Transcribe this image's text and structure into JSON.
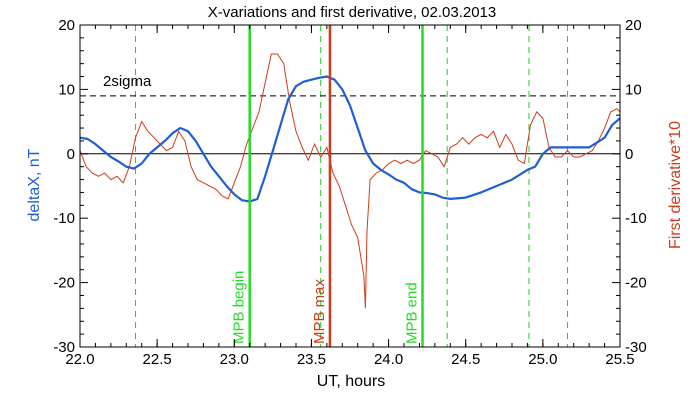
{
  "chart_data": {
    "type": "line",
    "title": "X-variations and first derivative, 02.03.2013",
    "xlabel": "UT, hours",
    "ylabel_left": "deltaX, nT",
    "ylabel_right": "First derivative*10",
    "xlim": [
      22.0,
      25.5
    ],
    "ylim": [
      -30,
      20
    ],
    "x_ticks": [
      "22.0",
      "22.5",
      "23.0",
      "23.5",
      "24.0",
      "24.5",
      "25.0",
      "25.5"
    ],
    "y_ticks_left": [
      "-30",
      "-20",
      "-10",
      "0",
      "10",
      "20"
    ],
    "y_ticks_right": [
      "-30",
      "-20",
      "-10",
      "0",
      "10",
      "20"
    ],
    "colors": {
      "deltaX": "#1f5fd6",
      "derivative": "#d23a1c",
      "marker_green": "#22dd22",
      "marker_red": "#d23a1c",
      "dashed_green": "#22cc22",
      "threshold": "#000000"
    },
    "threshold": {
      "label": "2sigma",
      "value": 9
    },
    "vertical_markers": [
      {
        "label": "MPB begin",
        "x": 23.1,
        "color": "#22dd22"
      },
      {
        "label": "MPB max",
        "x": 23.62,
        "color": "#d23a1c"
      },
      {
        "label": "MPB end",
        "x": 24.22,
        "color": "#22dd22"
      }
    ],
    "dashed_lines_x": [
      22.36,
      23.56,
      24.38,
      24.91,
      25.16
    ],
    "series": [
      {
        "name": "deltaX",
        "axis": "left",
        "x": [
          22.0,
          22.05,
          22.1,
          22.15,
          22.2,
          22.25,
          22.3,
          22.35,
          22.4,
          22.45,
          22.5,
          22.55,
          22.6,
          22.65,
          22.7,
          22.75,
          22.8,
          22.85,
          22.9,
          22.95,
          23.0,
          23.05,
          23.1,
          23.15,
          23.2,
          23.25,
          23.3,
          23.35,
          23.4,
          23.45,
          23.5,
          23.55,
          23.6,
          23.65,
          23.7,
          23.75,
          23.8,
          23.85,
          23.9,
          23.95,
          24.0,
          24.05,
          24.1,
          24.15,
          24.2,
          24.25,
          24.3,
          24.35,
          24.4,
          24.5,
          24.6,
          24.7,
          24.8,
          24.9,
          24.95,
          25.0,
          25.05,
          25.1,
          25.2,
          25.3,
          25.4,
          25.45,
          25.5
        ],
        "y": [
          2.5,
          2.3,
          1.5,
          0.5,
          -0.5,
          -1.2,
          -2.0,
          -2.3,
          -1.5,
          0.0,
          1.0,
          2.0,
          3.2,
          4.0,
          3.5,
          2.0,
          0.0,
          -2.0,
          -3.5,
          -5.0,
          -6.3,
          -7.2,
          -7.4,
          -7.0,
          -3.5,
          0.5,
          4.5,
          8.5,
          10.5,
          11.2,
          11.5,
          11.8,
          12.0,
          11.5,
          10.0,
          7.5,
          4.0,
          0.5,
          -1.5,
          -2.5,
          -3.2,
          -4.0,
          -4.5,
          -5.5,
          -6.0,
          -6.1,
          -6.3,
          -6.8,
          -7.0,
          -6.8,
          -6.0,
          -5.0,
          -4.0,
          -2.5,
          -2.0,
          0.0,
          1.0,
          1.0,
          1.0,
          1.0,
          2.5,
          4.5,
          5.5
        ]
      },
      {
        "name": "First derivative*10",
        "axis": "right",
        "x": [
          22.0,
          22.04,
          22.08,
          22.12,
          22.16,
          22.2,
          22.24,
          22.28,
          22.32,
          22.36,
          22.4,
          22.44,
          22.48,
          22.52,
          22.56,
          22.6,
          22.64,
          22.68,
          22.72,
          22.76,
          22.8,
          22.84,
          22.88,
          22.92,
          22.96,
          23.0,
          23.04,
          23.08,
          23.12,
          23.16,
          23.2,
          23.24,
          23.28,
          23.32,
          23.36,
          23.4,
          23.44,
          23.48,
          23.52,
          23.56,
          23.6,
          23.64,
          23.68,
          23.72,
          23.76,
          23.8,
          23.84,
          23.85,
          23.86,
          23.88,
          23.92,
          23.96,
          24.0,
          24.04,
          24.08,
          24.12,
          24.16,
          24.2,
          24.24,
          24.28,
          24.32,
          24.36,
          24.4,
          24.44,
          24.48,
          24.52,
          24.56,
          24.6,
          24.64,
          24.68,
          24.72,
          24.76,
          24.8,
          24.84,
          24.88,
          24.92,
          24.96,
          25.0,
          25.04,
          25.08,
          25.12,
          25.16,
          25.2,
          25.24,
          25.28,
          25.32,
          25.36,
          25.4,
          25.44,
          25.48,
          25.5
        ],
        "y": [
          0.5,
          -2.0,
          -3.0,
          -3.5,
          -3.0,
          -4.0,
          -3.5,
          -4.5,
          -2.0,
          2.5,
          5.0,
          3.5,
          2.5,
          1.5,
          0.5,
          1.0,
          3.5,
          2.0,
          -2.0,
          -4.0,
          -4.5,
          -5.0,
          -5.5,
          -6.5,
          -7.0,
          -4.5,
          -2.0,
          1.5,
          4.0,
          6.5,
          11.0,
          15.5,
          15.5,
          14.0,
          8.0,
          3.5,
          1.0,
          -1.0,
          1.5,
          -0.5,
          1.0,
          -3.0,
          -5.0,
          -8.0,
          -11.0,
          -13.0,
          -19.0,
          -24.0,
          -12.0,
          -4.0,
          -3.0,
          -2.5,
          -1.5,
          -1.0,
          -1.5,
          -1.0,
          -1.5,
          -1.0,
          0.5,
          0.0,
          -0.5,
          -2.0,
          1.0,
          1.5,
          2.5,
          1.5,
          2.5,
          3.0,
          2.5,
          3.5,
          1.0,
          3.0,
          1.5,
          -1.0,
          -1.5,
          4.5,
          6.5,
          5.5,
          1.0,
          -0.5,
          -0.5,
          0.5,
          -0.5,
          -0.5,
          0.0,
          0.5,
          2.0,
          4.0,
          6.5,
          7.0,
          6.5
        ]
      }
    ]
  }
}
